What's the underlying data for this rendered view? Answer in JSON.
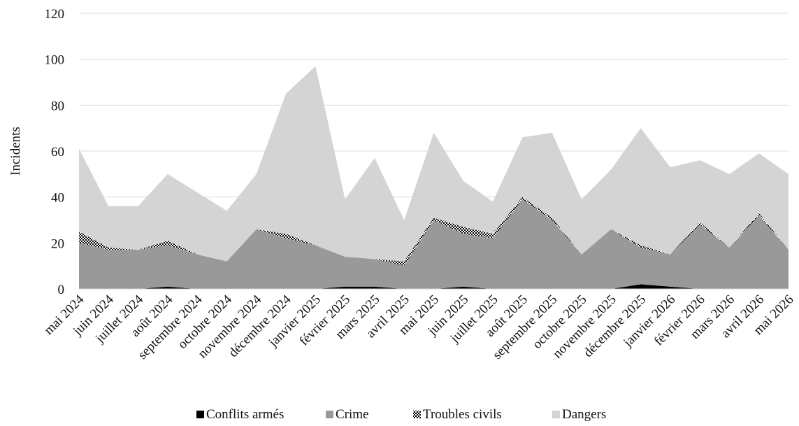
{
  "chart_data": {
    "type": "area",
    "stacked": true,
    "ylabel": "Incidents",
    "xlabel": "",
    "ylim": [
      0,
      120
    ],
    "yticks": [
      0,
      20,
      40,
      60,
      80,
      100,
      120
    ],
    "grid": true,
    "legend_position": "bottom",
    "categories": [
      "mai 2024",
      "juin 2024",
      "juillet 2024",
      "août 2024",
      "septembre 2024",
      "octobre 2024",
      "novembre 2024",
      "décembre 2024",
      "janvier 2025",
      "février 2025",
      "mars 2025",
      "avril 2025",
      "mai 2025",
      "juin 2025",
      "juillet 2025",
      "août 2025",
      "septembre 2025",
      "octobre 2025",
      "novembre 2025",
      "décembre 2025",
      "janvier 2026",
      "février 2026",
      "mars 2026",
      "avril 2026",
      "mai 2026"
    ],
    "series": [
      {
        "name": "Conflits armés",
        "color": "#000000",
        "pattern": "solid",
        "values": [
          0,
          0,
          0,
          1,
          0,
          0,
          0,
          0,
          0,
          1,
          1,
          0,
          0,
          1,
          0,
          0,
          0,
          0,
          0,
          2,
          1,
          0,
          0,
          0,
          0
        ]
      },
      {
        "name": "Crime",
        "color": "#999999",
        "pattern": "solid",
        "values": [
          20,
          17,
          17,
          18,
          15,
          12,
          26,
          22,
          19,
          13,
          12,
          10,
          30,
          23,
          22,
          39,
          30,
          15,
          26,
          16,
          14,
          28,
          18,
          32,
          17
        ]
      },
      {
        "name": "Troubles civils",
        "color": "#000000",
        "pattern": "checker",
        "values": [
          5,
          1,
          0,
          2,
          0,
          0,
          0,
          2,
          0,
          0,
          0,
          2,
          1,
          3,
          2,
          1,
          1,
          0,
          0,
          1,
          0,
          1,
          0,
          1,
          0
        ]
      },
      {
        "name": "Dangers",
        "color": "#d4d4d4",
        "pattern": "solid",
        "values": [
          36,
          18,
          19,
          29,
          27,
          22,
          24,
          61,
          78,
          25,
          44,
          18,
          37,
          20,
          14,
          26,
          37,
          24,
          26,
          51,
          38,
          27,
          32,
          26,
          33
        ]
      }
    ]
  }
}
